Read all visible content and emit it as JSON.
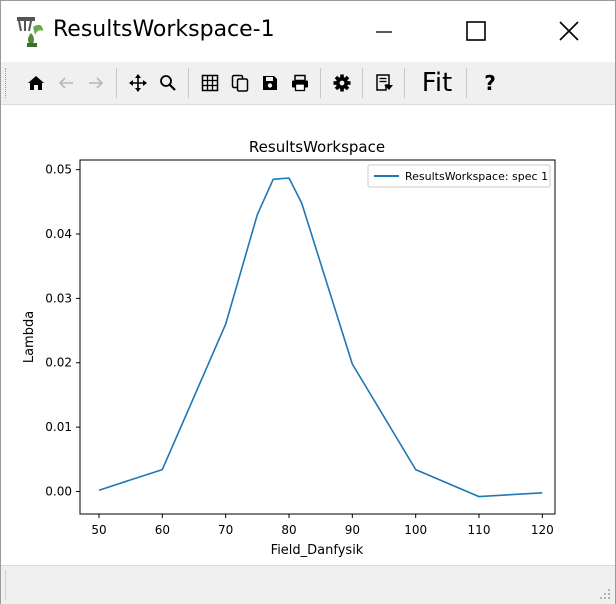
{
  "window": {
    "title": "ResultsWorkspace-1"
  },
  "toolbar": {
    "fit_label": "Fit",
    "help_label": "?",
    "buttons": [
      "home-icon",
      "back-icon",
      "forward-icon",
      "pan-icon",
      "zoom-icon",
      "grid-icon",
      "copy-icon",
      "save-icon",
      "print-icon",
      "settings-icon",
      "script-icon"
    ]
  },
  "chart_data": {
    "type": "line",
    "title": "ResultsWorkspace",
    "xlabel": "Field_Danfysik",
    "ylabel": "Lambda",
    "xlim": [
      47,
      122
    ],
    "ylim": [
      -0.0035,
      0.0515
    ],
    "xticks": [
      "50",
      "60",
      "70",
      "80",
      "90",
      "100",
      "110",
      "120"
    ],
    "yticks": [
      "0.00",
      "0.01",
      "0.02",
      "0.03",
      "0.04",
      "0.05"
    ],
    "legend_position": "top-right",
    "series": [
      {
        "name": "ResultsWorkspace: spec 1",
        "color": "#1f77b4",
        "x": [
          50,
          60,
          70,
          75,
          77.5,
          80,
          82,
          90,
          100,
          110,
          120
        ],
        "y": [
          0.0002,
          0.0034,
          0.026,
          0.043,
          0.0485,
          0.0487,
          0.0448,
          0.0198,
          0.0034,
          -0.0008,
          -0.0002
        ]
      }
    ]
  }
}
